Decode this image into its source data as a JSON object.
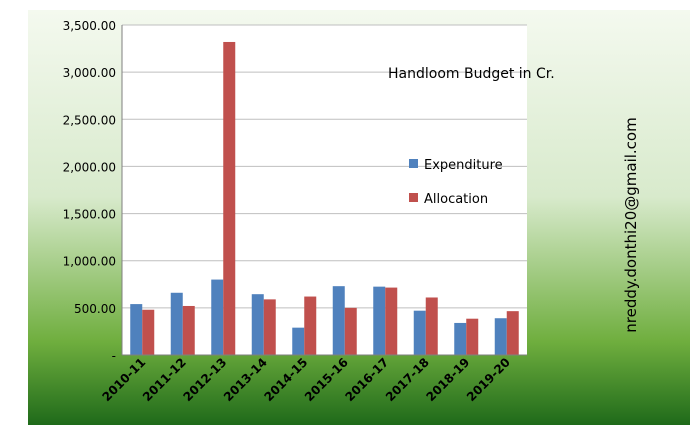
{
  "chart_data": {
    "type": "bar",
    "title": "Handloom Budget in Cr.",
    "watermark": "nreddy.donthi20@gmail.com",
    "categories": [
      "2010-11",
      "2011-12",
      "2012-13",
      "2013-14",
      "2014-15",
      "2015-16",
      "2016-17",
      "2017-18",
      "2018-19",
      "2019-20"
    ],
    "series": [
      {
        "name": "Expenditure",
        "color": "#4f81bd",
        "values": [
          540,
          660,
          800,
          645,
          290,
          730,
          725,
          470,
          340,
          390
        ]
      },
      {
        "name": "Allocation",
        "color": "#c0504d",
        "values": [
          480,
          520,
          3320,
          590,
          620,
          500,
          715,
          610,
          385,
          465
        ]
      }
    ],
    "y_ticks": [
      "-",
      "500.00",
      "1,000.00",
      "1,500.00",
      "2,000.00",
      "2,500.00",
      "3,000.00",
      "3,500.00"
    ],
    "ylim": [
      0,
      3500
    ],
    "grid": true,
    "legend_position": "right-middle",
    "background_gradient": [
      "#f4f9ef",
      "#d8eacc",
      "#6fae3e",
      "#1f6a1a"
    ]
  }
}
